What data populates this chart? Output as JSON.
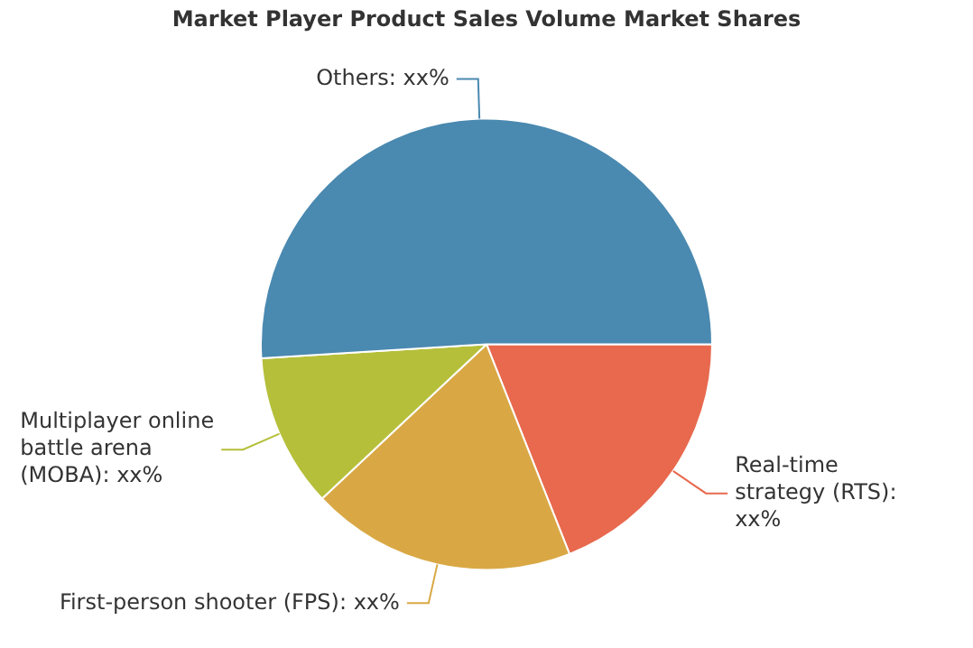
{
  "chart_data": {
    "type": "pie",
    "title": "Market Player Product Sales Volume Market Shares",
    "categories": [
      "Real-time strategy (RTS): xx%",
      "First-person shooter (FPS): xx%",
      "Multiplayer online battle arena (MOBA): xx%",
      "Others: xx%"
    ],
    "values": [
      19,
      19,
      11,
      51
    ],
    "colors": [
      "#e8694e",
      "#d9a845",
      "#b5bf3a",
      "#4a89b0"
    ],
    "legend": false
  }
}
